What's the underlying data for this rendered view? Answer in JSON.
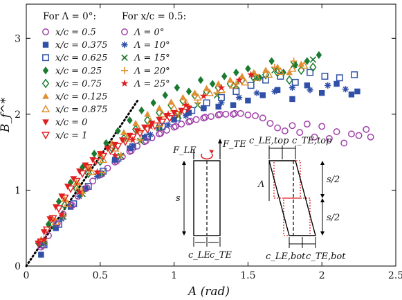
{
  "chart_data": {
    "type": "scatter",
    "xlabel": "A (rad)",
    "ylabel": "B_f^*",
    "xlim": [
      0,
      2.5
    ],
    "ylim": [
      0,
      3.45
    ],
    "xticks": [
      "0",
      "0.5",
      "1",
      "1.5",
      "2",
      "2.5"
    ],
    "yticks": [
      "0",
      "1",
      "2",
      "3"
    ],
    "legend_group_1_title": "For Λ = 0°:",
    "legend_group_2_title": "For x/c = 0.5:",
    "reference_line": {
      "style": "dotted",
      "color": "#000000",
      "x": [
        0,
        0.76
      ],
      "y": [
        0,
        2.2
      ]
    },
    "series": [
      {
        "name": "x/c = 0.5",
        "marker": "circle-open",
        "color": "#a040a8",
        "x": [
          0.1,
          0.15,
          0.2,
          0.25,
          0.3,
          0.35,
          0.4,
          0.45,
          0.5,
          0.55,
          0.6,
          0.65,
          0.7,
          0.75,
          0.8,
          0.85,
          0.9,
          0.95,
          1.0,
          1.05,
          1.1,
          1.15,
          1.2,
          1.25,
          1.3,
          1.35,
          1.4,
          1.45,
          1.5,
          1.55,
          1.6,
          1.65,
          1.7,
          1.75,
          1.8,
          1.85,
          1.9,
          1.95,
          2.0,
          2.05,
          2.1,
          2.15,
          2.2,
          2.25,
          2.3,
          2.33
        ],
        "y": [
          0.25,
          0.4,
          0.55,
          0.68,
          0.8,
          0.92,
          1.02,
          1.12,
          1.2,
          1.29,
          1.37,
          1.44,
          1.51,
          1.58,
          1.64,
          1.69,
          1.74,
          1.79,
          1.83,
          1.87,
          1.9,
          1.93,
          1.95,
          1.97,
          1.99,
          2.0,
          2.0,
          2.01,
          1.99,
          1.98,
          1.95,
          1.88,
          1.82,
          1.78,
          1.85,
          1.76,
          1.87,
          1.7,
          1.84,
          1.68,
          1.77,
          1.62,
          1.74,
          1.72,
          1.8,
          1.7
        ]
      },
      {
        "name": "x/c = 0.375",
        "marker": "square-filled",
        "color": "#3050a8",
        "x": [
          0.1,
          0.2,
          0.3,
          0.4,
          0.5,
          0.6,
          0.7,
          0.8,
          0.9,
          1.0,
          1.1,
          1.2,
          1.3,
          1.4,
          1.5,
          1.6,
          1.7,
          1.8,
          1.9,
          2.0,
          2.1,
          2.2,
          2.24
        ],
        "y": [
          0.15,
          0.5,
          0.78,
          1.02,
          1.22,
          1.4,
          1.55,
          1.69,
          1.82,
          1.93,
          2.02,
          2.08,
          2.1,
          2.12,
          2.18,
          2.25,
          2.32,
          2.2,
          2.38,
          2.28,
          2.4,
          2.26,
          2.3
        ]
      },
      {
        "name": "x/c = 0.625",
        "marker": "square-open",
        "color": "#3050a8",
        "x": [
          0.12,
          0.22,
          0.32,
          0.42,
          0.52,
          0.62,
          0.72,
          0.82,
          0.92,
          1.02,
          1.12,
          1.22,
          1.32,
          1.42,
          1.52,
          1.62,
          1.72,
          1.82,
          1.92,
          2.02,
          2.12,
          2.22
        ],
        "y": [
          0.28,
          0.55,
          0.82,
          1.05,
          1.25,
          1.42,
          1.57,
          1.7,
          1.84,
          1.95,
          2.05,
          2.15,
          2.22,
          2.3,
          2.38,
          2.45,
          2.5,
          2.42,
          2.55,
          2.5,
          2.48,
          2.52
        ]
      },
      {
        "name": "x/c = 0.25",
        "marker": "diamond-filled",
        "color": "#1a7a30",
        "x": [
          0.08,
          0.15,
          0.22,
          0.3,
          0.38,
          0.46,
          0.54,
          0.62,
          0.7,
          0.78,
          0.86,
          0.94,
          1.02,
          1.1,
          1.18,
          1.26,
          1.34,
          1.42,
          1.5,
          1.58,
          1.66,
          1.74,
          1.82,
          1.9,
          1.98
        ],
        "y": [
          0.3,
          0.55,
          0.85,
          1.1,
          1.3,
          1.48,
          1.62,
          1.78,
          1.92,
          2.05,
          2.15,
          2.25,
          2.35,
          2.3,
          2.45,
          2.4,
          2.5,
          2.55,
          2.6,
          2.48,
          2.7,
          2.55,
          2.65,
          2.7,
          2.78
        ]
      },
      {
        "name": "x/c = 0.75",
        "marker": "diamond-open",
        "color": "#1a7a30",
        "x": [
          0.1,
          0.18,
          0.26,
          0.34,
          0.42,
          0.5,
          0.58,
          0.66,
          0.74,
          0.82,
          0.9,
          0.98,
          1.06,
          1.14,
          1.22,
          1.3,
          1.38,
          1.46,
          1.54,
          1.62,
          1.7,
          1.78,
          1.86,
          1.94
        ],
        "y": [
          0.3,
          0.55,
          0.8,
          1.02,
          1.22,
          1.38,
          1.55,
          1.68,
          1.8,
          1.92,
          2.02,
          2.12,
          2.18,
          2.25,
          2.3,
          2.35,
          2.4,
          2.45,
          2.48,
          2.52,
          2.55,
          2.45,
          2.58,
          2.62
        ]
      },
      {
        "name": "x/c = 0.125",
        "marker": "triangle-up-filled",
        "color": "#e09030",
        "x": [
          0.1,
          0.18,
          0.26,
          0.34,
          0.42,
          0.5,
          0.58,
          0.66,
          0.74,
          0.82,
          0.9,
          0.98,
          1.06,
          1.14,
          1.22,
          1.3,
          1.38,
          1.46,
          1.54,
          1.62,
          1.7,
          1.78,
          1.86
        ],
        "y": [
          0.35,
          0.62,
          0.88,
          1.1,
          1.3,
          1.48,
          1.62,
          1.76,
          1.88,
          2.0,
          2.08,
          2.16,
          2.22,
          2.28,
          2.34,
          2.4,
          2.45,
          2.5,
          2.55,
          2.58,
          2.62,
          2.55,
          2.66
        ]
      },
      {
        "name": "x/c = 0.875",
        "marker": "triangle-up-open",
        "color": "#e09030",
        "x": [
          0.12,
          0.2,
          0.28,
          0.36,
          0.44,
          0.52,
          0.6,
          0.68,
          0.76,
          0.84,
          0.92,
          1.0,
          1.08,
          1.16,
          1.24,
          1.32,
          1.4,
          1.48,
          1.56,
          1.64,
          1.72,
          1.8,
          1.88
        ],
        "y": [
          0.32,
          0.58,
          0.82,
          1.05,
          1.24,
          1.4,
          1.55,
          1.68,
          1.8,
          1.9,
          2.0,
          2.08,
          2.15,
          2.22,
          2.28,
          2.32,
          2.38,
          2.42,
          2.48,
          2.52,
          2.56,
          2.6,
          2.64
        ]
      },
      {
        "name": "x/c = 0",
        "marker": "triangle-down-filled",
        "color": "#e02020",
        "x": [
          0.08,
          0.12,
          0.16,
          0.2,
          0.24,
          0.28,
          0.32,
          0.36,
          0.4,
          0.45,
          0.5,
          0.55,
          0.6,
          0.65,
          0.7,
          0.75,
          0.8,
          0.85,
          0.9,
          0.95,
          1.0,
          1.05,
          1.1
        ],
        "y": [
          0.3,
          0.45,
          0.62,
          0.78,
          0.92,
          1.05,
          1.15,
          1.25,
          1.33,
          1.4,
          1.48,
          1.55,
          1.6,
          1.66,
          1.72,
          1.78,
          1.83,
          1.88,
          1.93,
          1.98,
          2.02,
          2.05,
          2.08
        ]
      },
      {
        "name": "x/c = 1",
        "marker": "triangle-down-open",
        "color": "#e02020",
        "x": [
          0.1,
          0.14,
          0.18,
          0.22,
          0.26,
          0.3,
          0.34,
          0.38,
          0.42,
          0.47,
          0.52,
          0.57,
          0.62,
          0.67,
          0.72,
          0.77,
          0.82,
          0.87,
          0.92,
          0.97,
          1.02,
          1.07
        ],
        "y": [
          0.32,
          0.48,
          0.63,
          0.76,
          0.9,
          1.02,
          1.12,
          1.22,
          1.3,
          1.38,
          1.45,
          1.52,
          1.58,
          1.64,
          1.7,
          1.75,
          1.8,
          1.85,
          1.9,
          1.95,
          2.0,
          2.03
        ]
      },
      {
        "name": "Λ = 0°",
        "marker": "circle-open",
        "color": "#a040a8",
        "x": [
          0.11,
          0.21,
          0.31,
          0.41,
          0.51,
          0.61,
          0.71,
          0.81,
          0.91,
          1.01,
          1.11,
          1.21,
          1.31,
          1.41
        ],
        "y": [
          0.27,
          0.56,
          0.8,
          1.03,
          1.21,
          1.38,
          1.52,
          1.65,
          1.75,
          1.84,
          1.91,
          1.96,
          2.0,
          2.01
        ]
      },
      {
        "name": "Λ = 10°",
        "marker": "asterisk",
        "color": "#3050a8",
        "x": [
          0.12,
          0.24,
          0.36,
          0.48,
          0.6,
          0.72,
          0.84,
          0.96,
          1.08,
          1.2,
          1.32,
          1.44,
          1.56,
          1.68,
          1.8,
          1.92,
          2.04,
          2.16
        ],
        "y": [
          0.3,
          0.62,
          0.92,
          1.18,
          1.4,
          1.58,
          1.73,
          1.86,
          1.98,
          2.08,
          2.15,
          2.22,
          2.28,
          2.3,
          2.35,
          2.32,
          2.38,
          2.33
        ]
      },
      {
        "name": "Λ = 15°",
        "marker": "cross",
        "color": "#1a7a30",
        "x": [
          0.12,
          0.25,
          0.38,
          0.51,
          0.64,
          0.77,
          0.9,
          1.03,
          1.16,
          1.29,
          1.42,
          1.55,
          1.68,
          1.81,
          1.94
        ],
        "y": [
          0.33,
          0.65,
          0.95,
          1.22,
          1.45,
          1.65,
          1.82,
          1.98,
          2.12,
          2.25,
          2.38,
          2.48,
          2.58,
          2.65,
          2.72
        ]
      },
      {
        "name": "Λ = 20°",
        "marker": "plus",
        "color": "#e09030",
        "x": [
          0.12,
          0.25,
          0.38,
          0.51,
          0.64,
          0.77,
          0.9,
          1.03,
          1.16,
          1.29,
          1.42,
          1.55,
          1.68,
          1.81
        ],
        "y": [
          0.34,
          0.66,
          0.96,
          1.23,
          1.46,
          1.66,
          1.84,
          2.0,
          2.15,
          2.28,
          2.4,
          2.52,
          2.62,
          2.7
        ]
      },
      {
        "name": "Λ = 25°",
        "marker": "star",
        "color": "#e02020",
        "x": [
          0.12,
          0.24,
          0.36,
          0.48,
          0.6,
          0.72,
          0.84,
          0.96,
          1.08,
          1.2,
          1.32,
          1.44,
          1.52
        ],
        "y": [
          0.35,
          0.68,
          0.98,
          1.24,
          1.46,
          1.66,
          1.84,
          2.0,
          2.12,
          2.24,
          2.35,
          2.45,
          2.52
        ]
      }
    ]
  },
  "inset": {
    "rect_labels": {
      "le": "F_LE",
      "te": "F_TE",
      "s": "s",
      "c_le": "c_LE",
      "c_te": "c_TE"
    },
    "swept_labels": {
      "c_le_top": "c_LE,top",
      "c_te_top": "c_TE,top",
      "c_le_bot": "c_LE,bot",
      "c_te_bot": "c_TE,bot",
      "lambda": "Λ",
      "s_half_top": "s/2",
      "s_half_bot": "s/2"
    },
    "colors": {
      "line": "#000000",
      "dotted": "#e02020",
      "arrow": "#e02020"
    }
  }
}
